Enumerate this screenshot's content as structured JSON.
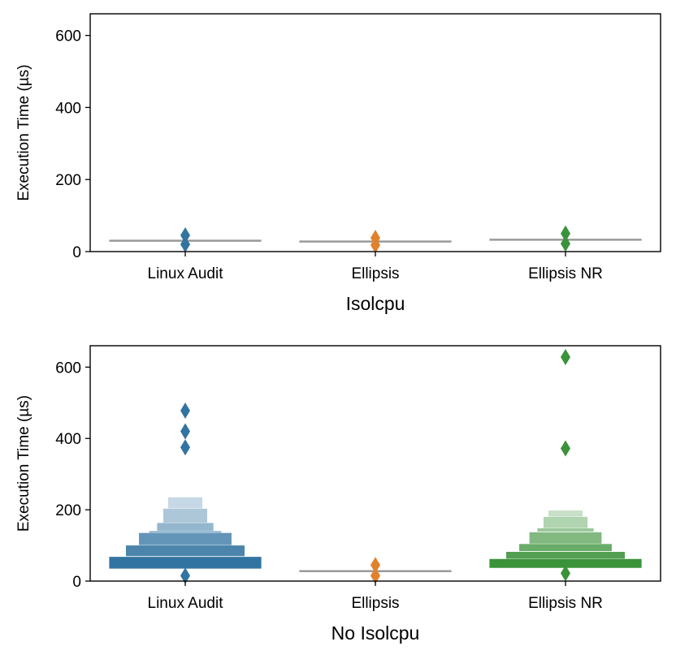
{
  "chart_data": [
    {
      "type": "boxen",
      "xlabel": "Isolcpu",
      "ylabel": "Execution Time (µs)",
      "ylim": [
        0,
        660
      ],
      "yticks": [
        0,
        200,
        400,
        600
      ],
      "categories": [
        "Linux Audit",
        "Ellipsis",
        "Ellipsis NR"
      ],
      "colors": [
        "#3274a1",
        "#e1812c",
        "#3a923a"
      ],
      "median_color": "#999999",
      "series": [
        {
          "category": "Linux Audit",
          "median": 30,
          "boxes": [],
          "outliers": [
            20,
            45
          ]
        },
        {
          "category": "Ellipsis",
          "median": 28,
          "boxes": [],
          "outliers": [
            18,
            38
          ]
        },
        {
          "category": "Ellipsis NR",
          "median": 33,
          "boxes": [],
          "outliers": [
            22,
            50
          ]
        }
      ]
    },
    {
      "type": "boxen",
      "xlabel": "No Isolcpu",
      "ylabel": "Execution Time (µs)",
      "ylim": [
        0,
        660
      ],
      "yticks": [
        0,
        200,
        400,
        600
      ],
      "categories": [
        "Linux Audit",
        "Ellipsis",
        "Ellipsis NR"
      ],
      "colors": [
        "#3274a1",
        "#e1812c",
        "#3a923a"
      ],
      "median_color": "#999999",
      "series": [
        {
          "category": "Linux Audit",
          "median": 50,
          "boxes": [
            {
              "low": 35,
              "high": 68
            },
            {
              "low": 70,
              "high": 100
            },
            {
              "low": 101,
              "high": 135
            },
            {
              "low": 136,
              "high": 140
            },
            {
              "low": 141,
              "high": 163
            },
            {
              "low": 164,
              "high": 203
            },
            {
              "low": 204,
              "high": 235
            }
          ],
          "outliers": [
            15,
            375,
            420,
            478
          ]
        },
        {
          "category": "Ellipsis",
          "median": 28,
          "boxes": [],
          "outliers": [
            15,
            45
          ]
        },
        {
          "category": "Ellipsis NR",
          "median": 48,
          "boxes": [
            {
              "low": 37,
              "high": 62
            },
            {
              "low": 63,
              "high": 82
            },
            {
              "low": 84,
              "high": 104
            },
            {
              "low": 105,
              "high": 137
            },
            {
              "low": 139,
              "high": 148
            },
            {
              "low": 149,
              "high": 180
            },
            {
              "low": 181,
              "high": 198
            }
          ],
          "outliers": [
            22,
            372,
            628
          ]
        }
      ]
    }
  ]
}
